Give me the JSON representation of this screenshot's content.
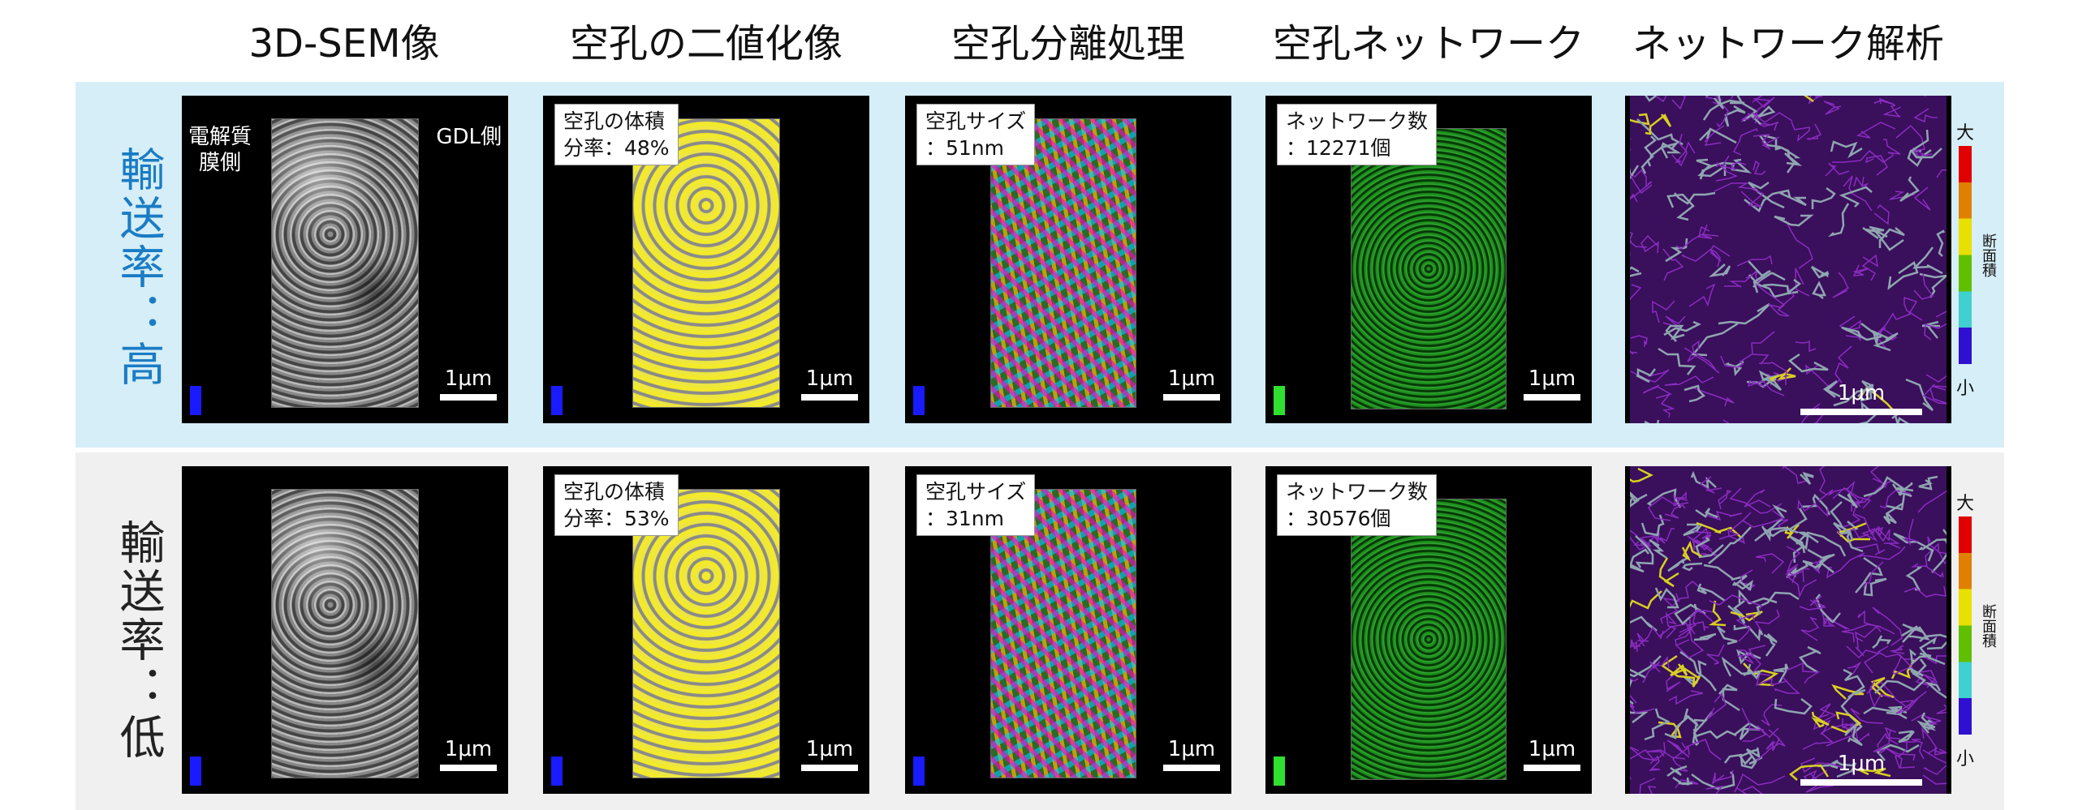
{
  "columns": [
    "3D-SEM像",
    "空孔の二値化像",
    "空孔分離処理",
    "空孔ネットワーク",
    "ネットワーク解析"
  ],
  "rows": [
    {
      "label": "輸送率：高",
      "color": "#1a7cc4",
      "band": "#d6eef7",
      "sem_left": "電解質\n膜側",
      "sem_right": "GDL側",
      "volume": "空孔の体積\n分率：48%",
      "size": "空孔サイズ\n：51nm",
      "network": "ネットワーク数\n：12271個"
    },
    {
      "label": "輸送率：低",
      "color": "#222222",
      "band": "#f0f0f0",
      "volume": "空孔の体積\n分率：53%",
      "size": "空孔サイズ\n：31nm",
      "network": "ネットワーク数\n：30576個"
    }
  ],
  "scale_label": "1μm",
  "colorbar": {
    "max": "大",
    "min": "小",
    "title": "断面積",
    "colors": [
      "#e00000",
      "#e08000",
      "#e8e000",
      "#60c000",
      "#40d0d0",
      "#3010d0"
    ]
  }
}
